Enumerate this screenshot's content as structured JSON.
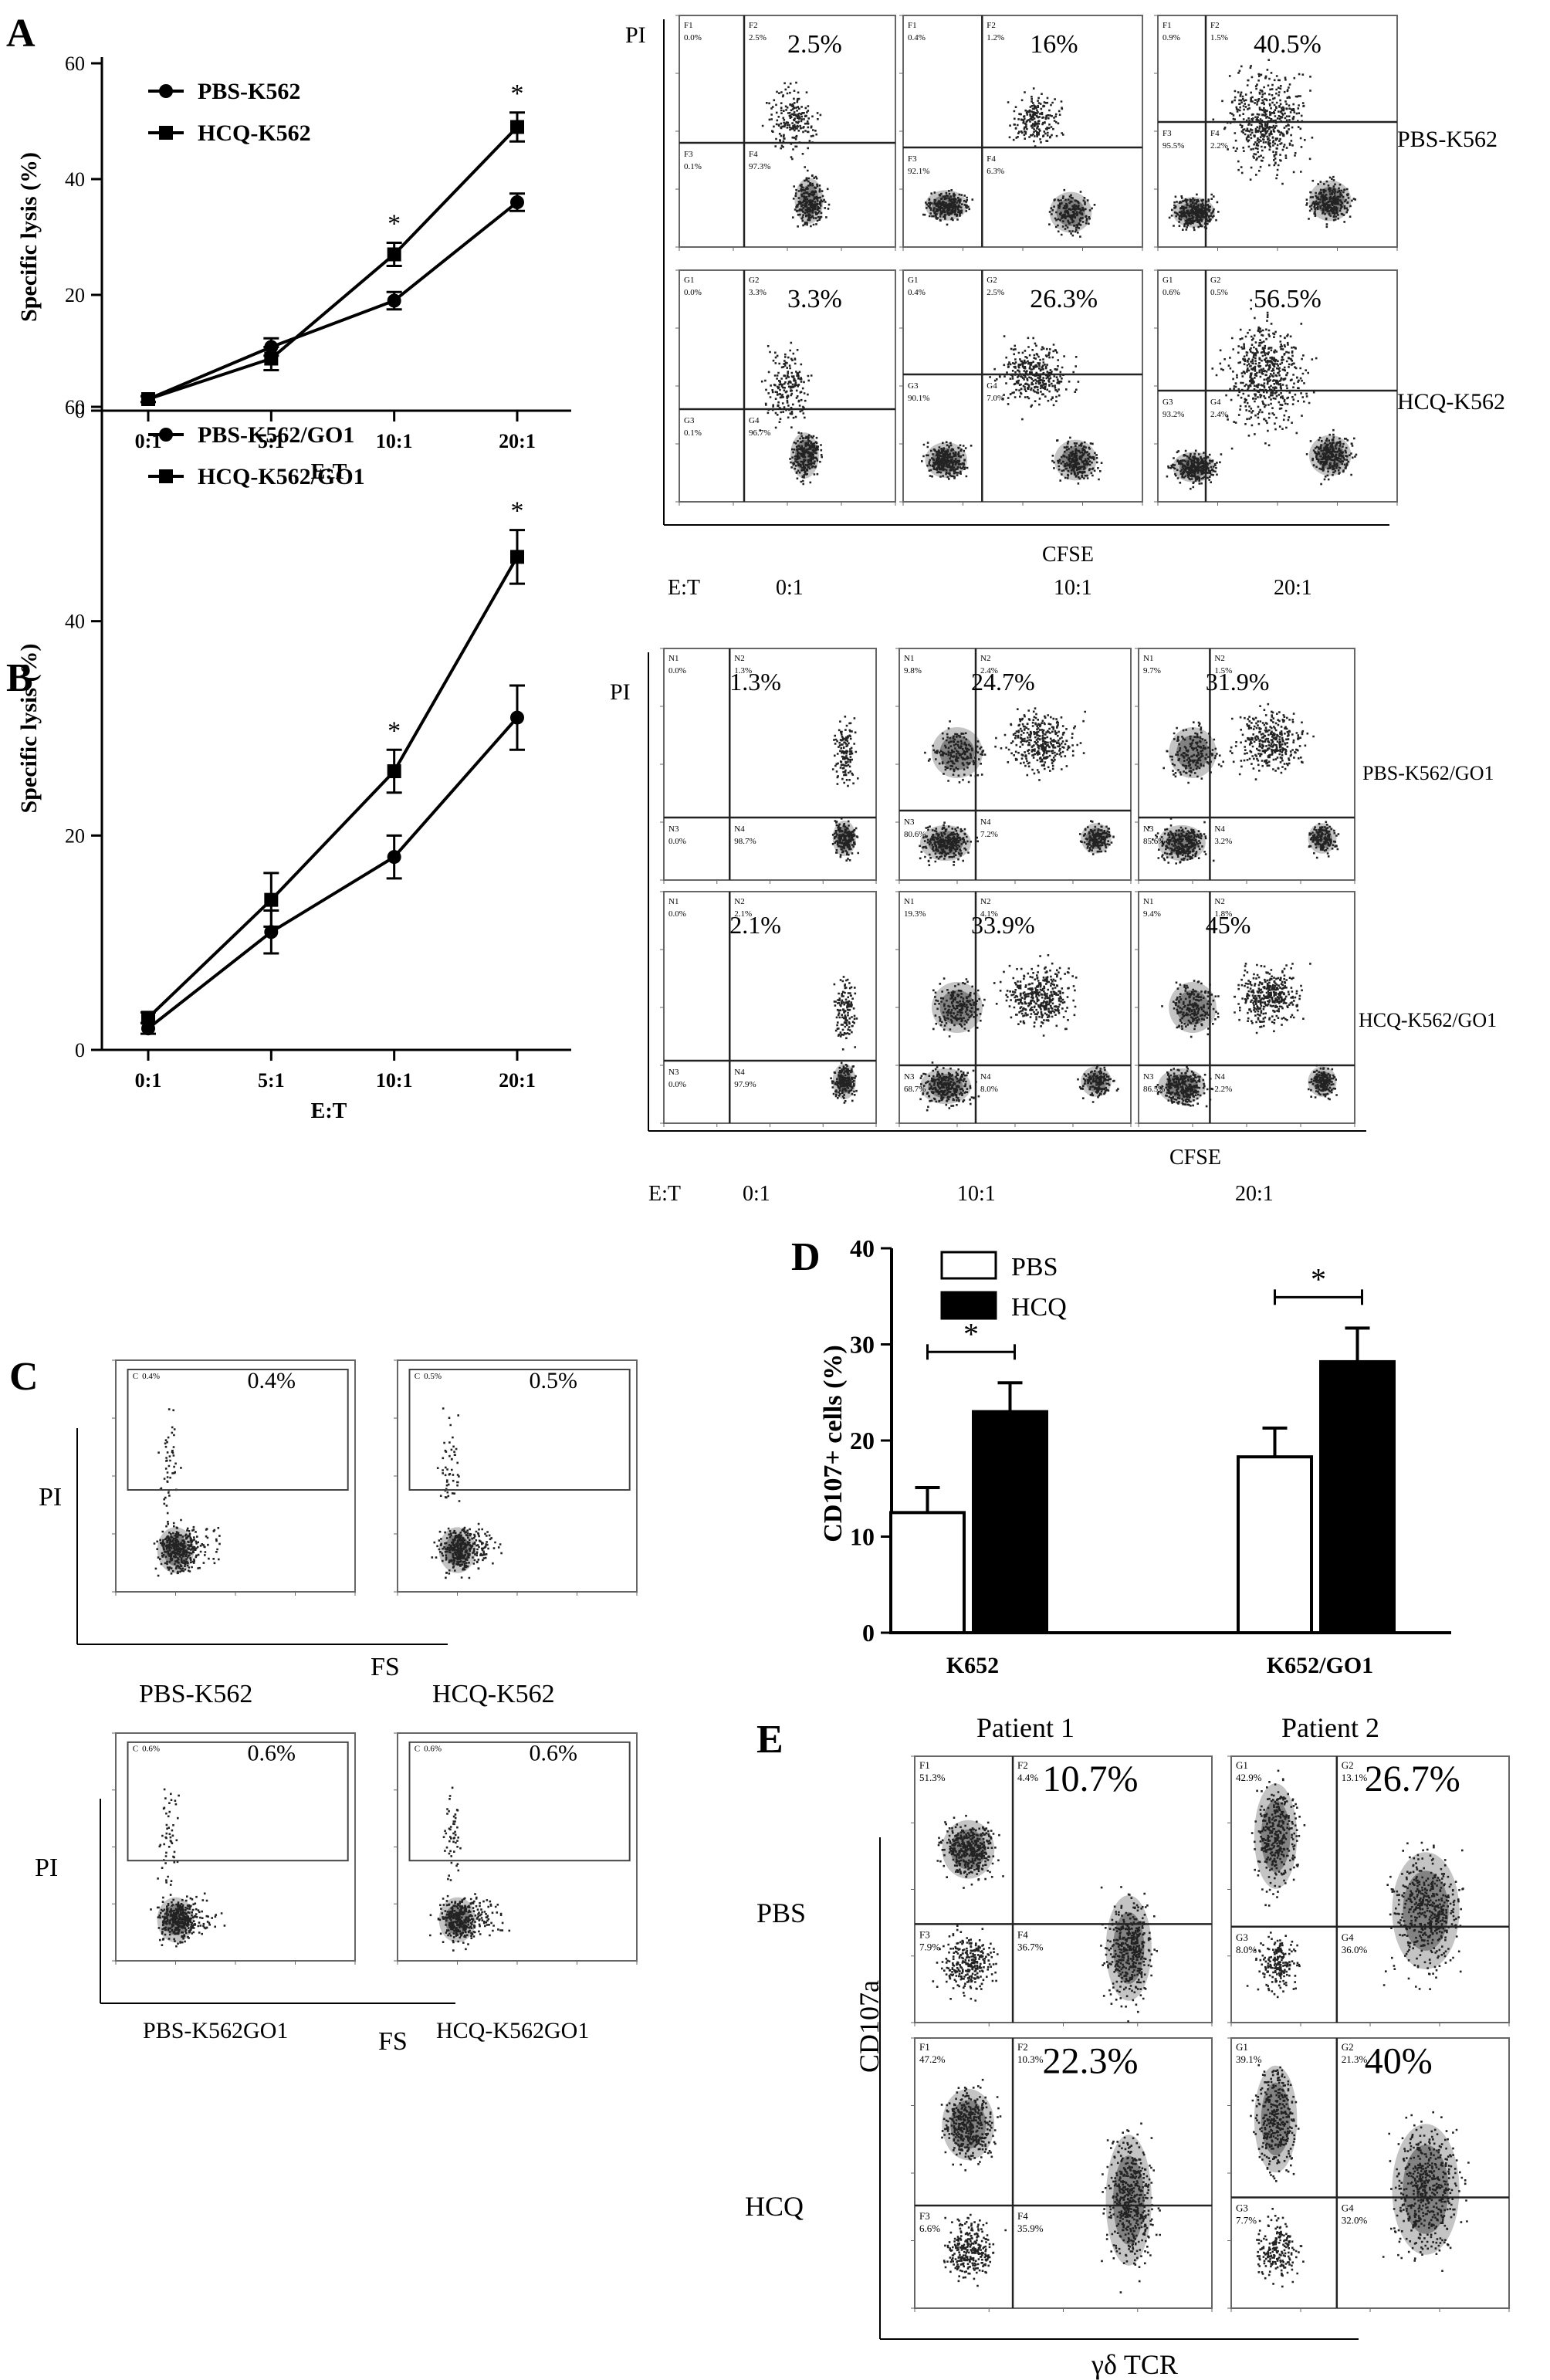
{
  "panels": {
    "A": "A",
    "B": "B",
    "C": "C",
    "D": "D",
    "E": "E"
  },
  "lineA": {
    "ylabel": "Specific lysis (%)",
    "xlabel": "E:T",
    "yticks": [
      "0",
      "20",
      "40",
      "60"
    ],
    "xticks": [
      "0:1",
      "5:1",
      "10:1",
      "20:1"
    ],
    "legend": [
      "PBS-K562",
      "HCQ-K562"
    ],
    "stars": [
      "*",
      "*"
    ]
  },
  "lineB": {
    "ylabel": "Specific lysis (%)",
    "xlabel": "E:T",
    "yticks": [
      "0",
      "20",
      "40",
      "60"
    ],
    "xticks": [
      "0:1",
      "5:1",
      "10:1",
      "20:1"
    ],
    "legend": [
      "PBS-K562/GO1",
      "HCQ-K562/GO1"
    ],
    "stars": [
      "*",
      "*"
    ]
  },
  "flowA": {
    "yaxis": "PI",
    "xaxis": "CFSE",
    "et_label": "E:T",
    "et": [
      "0:1",
      "10:1",
      "20:1"
    ],
    "rows": [
      "PBS-K562",
      "HCQ-K562"
    ],
    "pct": [
      [
        "2.5%",
        "16%",
        "40.5%"
      ],
      [
        "3.3%",
        "26.3%",
        "56.5%"
      ]
    ],
    "q": [
      [
        [
          "F1",
          "F2",
          "F3",
          "F4"
        ],
        [
          "F1",
          "F2",
          "F3",
          "F4"
        ],
        [
          "F1",
          "F2",
          "F3",
          "F4"
        ]
      ],
      [
        [
          "G1",
          "G2",
          "G3",
          "G4"
        ],
        [
          "G1",
          "G2",
          "G3",
          "G4"
        ],
        [
          "G1",
          "G2",
          "G3",
          "G4"
        ]
      ]
    ],
    "qv": [
      [
        [
          "0.0%",
          "2.5%",
          "0.1%",
          "97.3%"
        ],
        [
          "0.4%",
          "1.2%",
          "92.1%",
          "6.3%"
        ],
        [
          "0.9%",
          "1.5%",
          "95.5%",
          "2.2%"
        ]
      ],
      [
        [
          "0.0%",
          "3.3%",
          "0.1%",
          "96.7%"
        ],
        [
          "0.4%",
          "2.5%",
          "90.1%",
          "7.0%"
        ],
        [
          "0.6%",
          "0.5%",
          "93.2%",
          "2.4%"
        ]
      ]
    ]
  },
  "flowB": {
    "yaxis": "PI",
    "xaxis": "CFSE",
    "et_label": "E:T",
    "et": [
      "0:1",
      "10:1",
      "20:1"
    ],
    "rows": [
      "PBS-K562/GO1",
      "HCQ-K562/GO1"
    ],
    "pct": [
      [
        "1.3%",
        "24.7%",
        "31.9%"
      ],
      [
        "2.1%",
        "33.9%",
        "45%"
      ]
    ],
    "q": [
      [
        [
          "N1",
          "N2",
          "N3",
          "N4"
        ],
        [
          "N1",
          "N2",
          "N3",
          "N4"
        ],
        [
          "N1",
          "N2",
          "N3",
          "N4"
        ]
      ],
      [
        [
          "N1",
          "N2",
          "N3",
          "N4"
        ],
        [
          "N1",
          "N2",
          "N3",
          "N4"
        ],
        [
          "N1",
          "N2",
          "N3",
          "N4"
        ]
      ]
    ],
    "qv": [
      [
        [
          "0.0%",
          "1.3%",
          "0.0%",
          "98.7%"
        ],
        [
          "9.8%",
          "2.4%",
          "80.6%",
          "7.2%"
        ],
        [
          "9.7%",
          "1.5%",
          "85.6%",
          "3.2%"
        ]
      ],
      [
        [
          "0.0%",
          "2.1%",
          "0.0%",
          "97.9%"
        ],
        [
          "19.3%",
          "4.1%",
          "68.7%",
          "8.0%"
        ],
        [
          "9.4%",
          "1.8%",
          "86.5%",
          "2.2%"
        ]
      ]
    ]
  },
  "flowC": {
    "yaxis": "PI",
    "xaxis": "FS",
    "gate": "C",
    "pct": [
      [
        "0.4%",
        "0.5%"
      ],
      [
        "0.6%",
        "0.6%"
      ]
    ],
    "small": [
      [
        "0.4%",
        "0.5%"
      ],
      [
        "0.6%",
        "0.6%"
      ]
    ],
    "names": [
      [
        "PBS-K562",
        "HCQ-K562"
      ],
      [
        "PBS-K562GO1",
        "HCQ-K562GO1"
      ]
    ]
  },
  "flowE": {
    "yaxis": "CD107a",
    "xaxis": "γδ TCR",
    "cols": [
      "Patient 1",
      "Patient 2"
    ],
    "rows": [
      "PBS",
      "HCQ"
    ],
    "pct": [
      [
        "10.7%",
        "26.7%"
      ],
      [
        "22.3%",
        "40%"
      ]
    ],
    "q": [
      [
        [
          "F1",
          "F2",
          "F3",
          "F4"
        ],
        [
          "G1",
          "G2",
          "G3",
          "G4"
        ]
      ],
      [
        [
          "F1",
          "F2",
          "F3",
          "F4"
        ],
        [
          "G1",
          "G2",
          "G3",
          "G4"
        ]
      ]
    ],
    "qv": [
      [
        [
          "51.3%",
          "4.4%",
          "7.9%",
          "36.7%"
        ],
        [
          "42.9%",
          "13.1%",
          "8.0%",
          "36.0%"
        ]
      ],
      [
        [
          "47.2%",
          "10.3%",
          "6.6%",
          "35.9%"
        ],
        [
          "39.1%",
          "21.3%",
          "7.7%",
          "32.0%"
        ]
      ]
    ]
  },
  "bar": {
    "ylabel": "CD107+ cells (%)",
    "yticks": [
      "0",
      "10",
      "20",
      "30",
      "40"
    ],
    "stars": [
      "*",
      "*"
    ]
  },
  "chart_data": [
    {
      "type": "line",
      "title": "",
      "xlabel": "E:T",
      "ylabel": "Specific lysis (%)",
      "categories": [
        "0:1",
        "5:1",
        "10:1",
        "20:1"
      ],
      "ylim": [
        0,
        60
      ],
      "series": [
        {
          "name": "PBS-K562",
          "values": [
            2,
            11,
            19,
            36
          ],
          "errors": [
            0.5,
            1.5,
            1.5,
            1.5
          ]
        },
        {
          "name": "HCQ-K562",
          "values": [
            2,
            9,
            27,
            49
          ],
          "errors": [
            0.5,
            2,
            2,
            2.5
          ]
        }
      ],
      "annotations": [
        "*",
        "*"
      ],
      "legend_position": "top-left"
    },
    {
      "type": "line",
      "title": "",
      "xlabel": "E:T",
      "ylabel": "Specific lysis (%)",
      "categories": [
        "0:1",
        "5:1",
        "10:1",
        "20:1"
      ],
      "ylim": [
        0,
        60
      ],
      "series": [
        {
          "name": "PBS-K562/GO1",
          "values": [
            2,
            11,
            18,
            31
          ],
          "errors": [
            0.5,
            2,
            2,
            3
          ]
        },
        {
          "name": "HCQ-K562/GO1",
          "values": [
            3,
            14,
            26,
            46
          ],
          "errors": [
            0.5,
            2.5,
            2,
            2.5
          ]
        }
      ],
      "annotations": [
        "*",
        "*"
      ],
      "legend_position": "top-left"
    },
    {
      "type": "bar",
      "title": "",
      "xlabel": "",
      "ylabel": "CD107+ cells (%)",
      "categories": [
        "K652",
        "K652/GO1"
      ],
      "ylim": [
        0,
        40
      ],
      "series": [
        {
          "name": "PBS",
          "values": [
            12.5,
            18.3
          ],
          "errors": [
            2.6,
            3.0
          ]
        },
        {
          "name": "HCQ",
          "values": [
            23.0,
            28.2
          ],
          "errors": [
            3.0,
            3.5
          ]
        }
      ],
      "annotations": [
        "*",
        "*"
      ],
      "legend_position": "top-left",
      "colors": [
        "#ffffff",
        "#000000"
      ]
    }
  ]
}
